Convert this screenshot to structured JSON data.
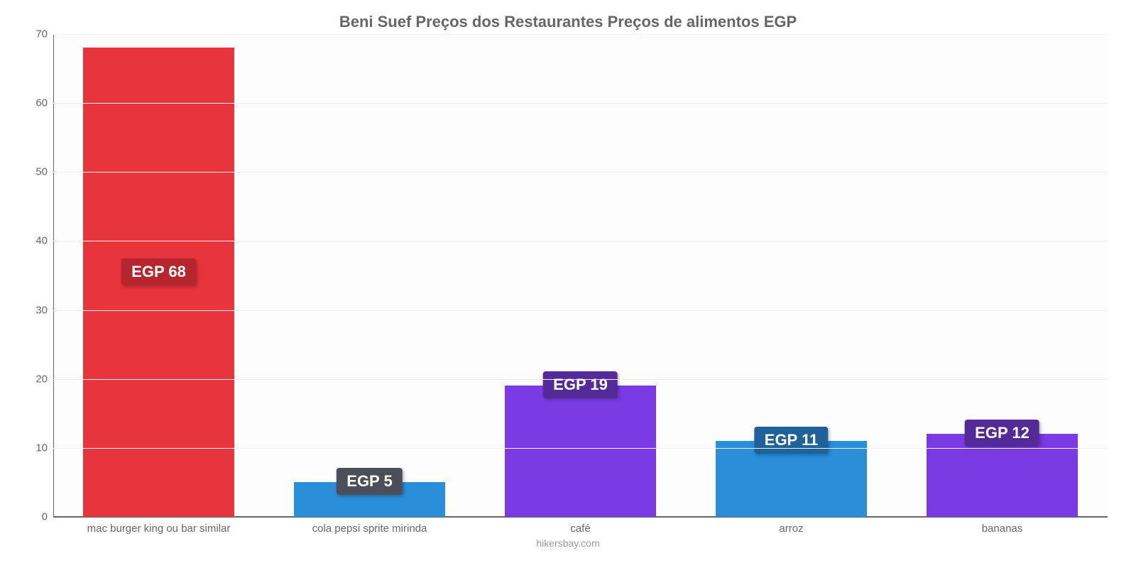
{
  "chart": {
    "type": "bar",
    "title": "Beni Suef Preços dos Restaurantes Preços de alimentos EGP",
    "title_fontsize": 22,
    "title_color": "#666666",
    "background_color": "#ffffff",
    "plot_background_color": "#fdfdfd",
    "grid_color": "#f0f0f0",
    "axis_color": "#666666",
    "tick_color": "#666666",
    "tick_fontsize": 15,
    "xlabel_fontsize": 15,
    "ylim": [
      0,
      70
    ],
    "ytick_step": 10,
    "yticks": [
      0,
      10,
      20,
      30,
      40,
      50,
      60,
      70
    ],
    "bar_width_ratio": 0.72,
    "categories": [
      "mac burger king ou bar similar",
      "cola pepsi sprite mirinda",
      "café",
      "arroz",
      "bananas"
    ],
    "values": [
      68,
      5,
      19,
      11,
      12
    ],
    "value_labels": [
      "EGP 68",
      "EGP 5",
      "EGP 19",
      "EGP 11",
      "EGP 12"
    ],
    "bar_colors": [
      "#e8343c",
      "#2a8ed8",
      "#7a3be5",
      "#2a8ed8",
      "#7a3be5"
    ],
    "badge_colors": [
      "#b5262f",
      "#4b5058",
      "#542a99",
      "#1f6299",
      "#542a99"
    ],
    "badge_fontsize": 22,
    "badge_text_color": "#ffffff",
    "credit": "hikersbay.com",
    "credit_color": "#999999"
  }
}
